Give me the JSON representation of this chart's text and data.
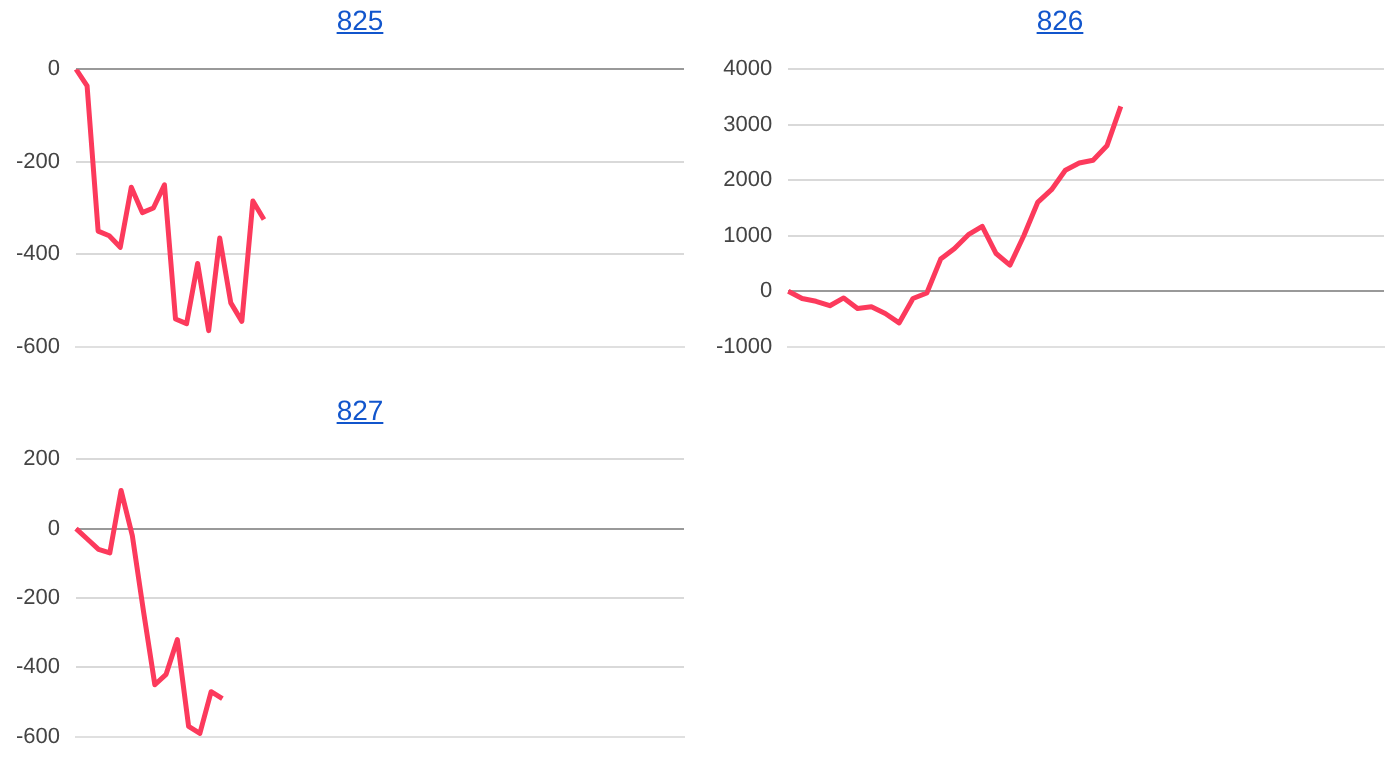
{
  "chart_data": [
    {
      "type": "line",
      "title": "825",
      "grid": "y",
      "tick_labels": "y",
      "ylim": [
        -600,
        0
      ],
      "yticks": [
        -600,
        -400,
        -200,
        0
      ],
      "categories": [
        null,
        null,
        null,
        null,
        null,
        null,
        null,
        null,
        null,
        null,
        null,
        null,
        null,
        null,
        null,
        null,
        null,
        null,
        null,
        null,
        null,
        null,
        null,
        null,
        null,
        null,
        null,
        null,
        null,
        null,
        null,
        null,
        null,
        null,
        null,
        null,
        null,
        null,
        null,
        null,
        null,
        null,
        null,
        null,
        null,
        null,
        null,
        null,
        null,
        null,
        null,
        null,
        null,
        null,
        null,
        null
      ],
      "series": [
        {
          "color": "#fc3a5c",
          "values": [
            0,
            -36,
            -350,
            -360,
            -385,
            -255,
            -310,
            -300,
            -250,
            -540,
            -550,
            -420,
            -565,
            -365,
            -505,
            -545,
            -285,
            -325,
            null,
            null,
            null,
            null,
            null,
            null,
            null,
            null,
            null,
            null,
            null,
            null,
            null,
            null,
            null,
            null,
            null,
            null,
            null,
            null,
            null,
            null,
            null,
            null,
            null,
            null,
            null,
            null,
            null,
            null,
            null,
            null,
            null,
            null,
            null,
            null,
            null,
            null
          ]
        }
      ]
    },
    {
      "type": "line",
      "title": "826",
      "grid": "y",
      "tick_labels": "y",
      "ylim": [
        -1000,
        4000
      ],
      "yticks": [
        -1000,
        0,
        1000,
        2000,
        3000,
        4000
      ],
      "categories": [
        null,
        null,
        null,
        null,
        null,
        null,
        null,
        null,
        null,
        null,
        null,
        null,
        null,
        null,
        null,
        null,
        null,
        null,
        null,
        null,
        null,
        null,
        null,
        null,
        null,
        null,
        null,
        null,
        null,
        null,
        null,
        null,
        null,
        null,
        null,
        null,
        null,
        null,
        null,
        null,
        null,
        null,
        null,
        null
      ],
      "series": [
        {
          "color": "#fc3a5c",
          "values": [
            0,
            -130,
            -180,
            -260,
            -120,
            -310,
            -280,
            -400,
            -570,
            -130,
            -30,
            580,
            770,
            1020,
            1170,
            680,
            470,
            1000,
            1600,
            1830,
            2180,
            2310,
            2360,
            2620,
            3330,
            null,
            null,
            null,
            null,
            null,
            null,
            null,
            null,
            null,
            null,
            null,
            null,
            null,
            null,
            null,
            null,
            null,
            null,
            null
          ]
        }
      ]
    },
    {
      "type": "line",
      "title": "827",
      "grid": "y",
      "tick_labels": "y",
      "ylim": [
        -600,
        200
      ],
      "yticks": [
        -600,
        -400,
        -200,
        0,
        200
      ],
      "categories": [
        null,
        null,
        null,
        null,
        null,
        null,
        null,
        null,
        null,
        null,
        null,
        null,
        null,
        null,
        null,
        null,
        null,
        null,
        null,
        null,
        null,
        null,
        null,
        null,
        null,
        null,
        null,
        null,
        null,
        null,
        null,
        null,
        null,
        null,
        null,
        null,
        null,
        null,
        null,
        null,
        null,
        null,
        null,
        null,
        null,
        null,
        null,
        null,
        null,
        null,
        null,
        null,
        null,
        null,
        null
      ],
      "series": [
        {
          "color": "#fc3a5c",
          "values": [
            0,
            -30,
            -60,
            -70,
            110,
            -20,
            -240,
            -450,
            -420,
            -320,
            -570,
            -590,
            -470,
            -490,
            null,
            null,
            null,
            null,
            null,
            null,
            null,
            null,
            null,
            null,
            null,
            null,
            null,
            null,
            null,
            null,
            null,
            null,
            null,
            null,
            null,
            null,
            null,
            null,
            null,
            null,
            null,
            null,
            null,
            null,
            null,
            null,
            null,
            null,
            null,
            null,
            null,
            null,
            null,
            null,
            null
          ]
        }
      ]
    }
  ]
}
